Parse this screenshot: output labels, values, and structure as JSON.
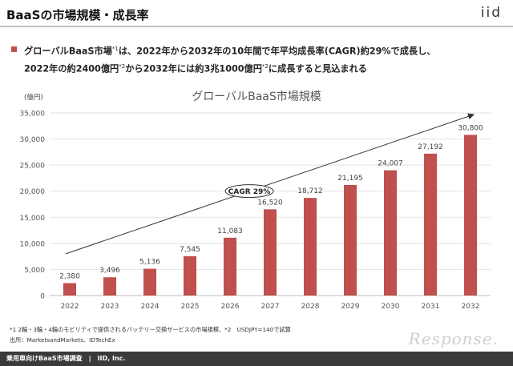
{
  "header": {
    "title": "BaaSの市場規模・成長率",
    "logo": "iid"
  },
  "summary": {
    "line1_a": "グローバルBaaS市場",
    "line1_sup": "*1",
    "line1_b": "は、2022年から2032年の10年間で年平均成長率(CAGR)約29%で成長し、",
    "line2_a": "2022年の約2400億円",
    "line2_sup1": "*2",
    "line2_b": "から2032年には約3兆1000億円",
    "line2_sup2": "*2",
    "line2_c": "に成長すると見込まれる"
  },
  "chart_data": {
    "type": "bar",
    "title": "グローバルBaaS市場規模",
    "ylabel": "(億円)",
    "xlabel": "",
    "categories": [
      "2022",
      "2023",
      "2024",
      "2025",
      "2026",
      "2027",
      "2028",
      "2029",
      "2030",
      "2031",
      "2032"
    ],
    "values": [
      2380,
      3496,
      5136,
      7545,
      11083,
      16520,
      18712,
      21195,
      24007,
      27192,
      30800
    ],
    "value_labels": [
      "2,380",
      "3,496",
      "5,136",
      "7,545",
      "11,083",
      "16,520",
      "18,712",
      "21,195",
      "24,007",
      "27,192",
      "30,800"
    ],
    "yticks": [
      0,
      5000,
      10000,
      15000,
      20000,
      25000,
      30000,
      35000
    ],
    "ytick_labels": [
      "0",
      "5,000",
      "10,000",
      "15,000",
      "20,000",
      "25,000",
      "30,000",
      "35,000"
    ],
    "ylim": [
      0,
      35000
    ],
    "grid": true,
    "bar_color": "#c0504d",
    "annotation": "CAGR 29%",
    "trend_arrow": {
      "from": [
        "2022",
        8000
      ],
      "to": [
        "2032",
        35000
      ]
    }
  },
  "footnotes": {
    "note1": "*1 2輪・3輪・4輪のモビリティで提供されるバッテリー交換サービスの市場規模、*2　USDJPY=140で試算",
    "source": "出所：MarketsandMarkets、IDTechEx"
  },
  "footer": {
    "text": "乗用車向けBaaS市場調査　|　IID, Inc."
  },
  "watermark": "Response."
}
